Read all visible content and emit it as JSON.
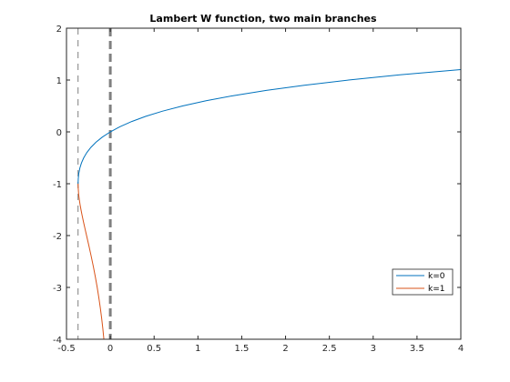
{
  "chart_data": {
    "type": "line",
    "title": "Lambert W function, two main branches",
    "xlabel": "",
    "ylabel": "",
    "xlim": [
      -0.5,
      4
    ],
    "ylim": [
      -4,
      2
    ],
    "xticks": [
      -0.5,
      0,
      0.5,
      1,
      1.5,
      2,
      2.5,
      3,
      3.5,
      4
    ],
    "xtick_labels": [
      "-0.5",
      "0",
      "0.5",
      "1",
      "1.5",
      "2",
      "2.5",
      "3",
      "3.5",
      "4"
    ],
    "yticks": [
      -4,
      -3,
      -2,
      -1,
      0,
      1,
      2
    ],
    "ytick_labels": [
      "-4",
      "-3",
      "-2",
      "-1",
      "0",
      "1",
      "2"
    ],
    "grid": false,
    "legend_position": "lower-right",
    "series": [
      {
        "name": "k=0",
        "color": "#0072BD",
        "points": [
          [
            -0.3679,
            -1.0
          ],
          [
            -0.3653,
            -0.9
          ],
          [
            -0.3595,
            -0.8
          ],
          [
            -0.3476,
            -0.7
          ],
          [
            -0.3293,
            -0.6
          ],
          [
            -0.3033,
            -0.5
          ],
          [
            -0.2681,
            -0.4
          ],
          [
            -0.2222,
            -0.3
          ],
          [
            -0.1637,
            -0.2
          ],
          [
            -0.0905,
            -0.1
          ],
          [
            0.0,
            0.0
          ],
          [
            0.1105,
            0.1
          ],
          [
            0.2443,
            0.2
          ],
          [
            0.4049,
            0.3
          ],
          [
            0.5967,
            0.4
          ],
          [
            0.8244,
            0.5
          ],
          [
            1.0933,
            0.6
          ],
          [
            1.4096,
            0.7
          ],
          [
            1.7804,
            0.8
          ],
          [
            2.2136,
            0.9
          ],
          [
            2.7183,
            1.0
          ],
          [
            3.3046,
            1.1
          ],
          [
            3.9841,
            1.2
          ],
          [
            4.0,
            1.2022
          ]
        ]
      },
      {
        "name": "k=1",
        "color": "#D95319",
        "points": [
          [
            -0.3679,
            -1.0
          ],
          [
            -0.3653,
            -1.1
          ],
          [
            -0.3614,
            -1.2
          ],
          [
            -0.3543,
            -1.3
          ],
          [
            -0.3452,
            -1.4
          ],
          [
            -0.3347,
            -1.5
          ],
          [
            -0.323,
            -1.6
          ],
          [
            -0.3106,
            -1.7
          ],
          [
            -0.2975,
            -1.8
          ],
          [
            -0.2842,
            -1.9
          ],
          [
            -0.2707,
            -2.0
          ],
          [
            -0.2438,
            -2.2
          ],
          [
            -0.2177,
            -2.4
          ],
          [
            -0.1931,
            -2.6
          ],
          [
            -0.1703,
            -2.8
          ],
          [
            -0.1494,
            -3.0
          ],
          [
            -0.1305,
            -3.2
          ],
          [
            -0.1135,
            -3.4
          ],
          [
            -0.0983,
            -3.6
          ],
          [
            -0.0849,
            -3.8
          ],
          [
            -0.0733,
            -4.0
          ]
        ]
      }
    ],
    "reference_lines": [
      {
        "type": "vertical",
        "x": -0.3679,
        "style": "dashed",
        "color": "#808080"
      },
      {
        "type": "vertical",
        "x": 0,
        "style": "dashed-thick",
        "color": "#808080"
      }
    ]
  }
}
